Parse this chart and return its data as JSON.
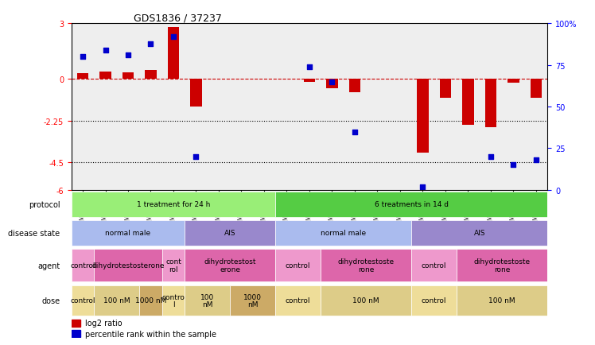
{
  "title": "GDS1836 / 37237",
  "samples": [
    "GSM88440",
    "GSM88442",
    "GSM88422",
    "GSM88438",
    "GSM88423",
    "GSM88441",
    "GSM88429",
    "GSM88435",
    "GSM88439",
    "GSM88424",
    "GSM88431",
    "GSM88436",
    "GSM88426",
    "GSM88432",
    "GSM88434",
    "GSM88427",
    "GSM88430",
    "GSM88437",
    "GSM88425",
    "GSM88428",
    "GSM88433"
  ],
  "log2_ratio": [
    0.3,
    0.4,
    0.35,
    0.5,
    2.8,
    -1.5,
    0.0,
    0.0,
    0.0,
    0.0,
    -0.15,
    -0.5,
    -0.7,
    0.0,
    0.0,
    -4.0,
    -1.0,
    -2.5,
    -2.6,
    -0.2,
    -1.0
  ],
  "percentile_rank": [
    80,
    84,
    81,
    88,
    92,
    20,
    null,
    null,
    null,
    null,
    74,
    65,
    35,
    null,
    null,
    2,
    null,
    null,
    20,
    15,
    18
  ],
  "ylim_left": [
    -6,
    3
  ],
  "ylim_right": [
    0,
    100
  ],
  "yticks_left": [
    3,
    0,
    -2.25,
    -4.5,
    -6
  ],
  "yticks_right": [
    100,
    75,
    50,
    25,
    0
  ],
  "hline_y": 0,
  "dotted_lines": [
    -2.25,
    -4.5
  ],
  "bar_color": "#cc0000",
  "scatter_color": "#0000cc",
  "hline_color": "#cc0000",
  "protocol_row": [
    {
      "label": "1 treatment for 24 h",
      "start": 0,
      "end": 8,
      "color": "#99ee77"
    },
    {
      "label": "6 treatments in 14 d",
      "start": 9,
      "end": 20,
      "color": "#55cc44"
    }
  ],
  "disease_state_row": [
    {
      "label": "normal male",
      "start": 0,
      "end": 4,
      "color": "#aabbee"
    },
    {
      "label": "AIS",
      "start": 5,
      "end": 8,
      "color": "#9988cc"
    },
    {
      "label": "normal male",
      "start": 9,
      "end": 14,
      "color": "#aabbee"
    },
    {
      "label": "AIS",
      "start": 15,
      "end": 20,
      "color": "#9988cc"
    }
  ],
  "agent_row": [
    {
      "label": "control",
      "start": 0,
      "end": 0,
      "color": "#ee99cc"
    },
    {
      "label": "dihydrotestosterone",
      "start": 1,
      "end": 3,
      "color": "#dd66aa"
    },
    {
      "label": "cont\nrol",
      "start": 4,
      "end": 4,
      "color": "#ee99cc"
    },
    {
      "label": "dihydrotestost\nerone",
      "start": 5,
      "end": 8,
      "color": "#dd66aa"
    },
    {
      "label": "control",
      "start": 9,
      "end": 10,
      "color": "#ee99cc"
    },
    {
      "label": "dihydrotestoste\nrone",
      "start": 11,
      "end": 14,
      "color": "#dd66aa"
    },
    {
      "label": "control",
      "start": 15,
      "end": 16,
      "color": "#ee99cc"
    },
    {
      "label": "dihydrotestoste\nrone",
      "start": 17,
      "end": 20,
      "color": "#dd66aa"
    }
  ],
  "dose_row": [
    {
      "label": "control",
      "start": 0,
      "end": 0,
      "color": "#eedd99"
    },
    {
      "label": "100 nM",
      "start": 1,
      "end": 2,
      "color": "#ddcc88"
    },
    {
      "label": "1000 nM",
      "start": 3,
      "end": 3,
      "color": "#ccaa66"
    },
    {
      "label": "contro\nl",
      "start": 4,
      "end": 4,
      "color": "#eedd99"
    },
    {
      "label": "100\nnM",
      "start": 5,
      "end": 6,
      "color": "#ddcc88"
    },
    {
      "label": "1000\nnM",
      "start": 7,
      "end": 8,
      "color": "#ccaa66"
    },
    {
      "label": "control",
      "start": 9,
      "end": 10,
      "color": "#eedd99"
    },
    {
      "label": "100 nM",
      "start": 11,
      "end": 14,
      "color": "#ddcc88"
    },
    {
      "label": "control",
      "start": 15,
      "end": 16,
      "color": "#eedd99"
    },
    {
      "label": "100 nM",
      "start": 17,
      "end": 20,
      "color": "#ddcc88"
    }
  ],
  "row_labels": [
    "protocol",
    "disease state",
    "agent",
    "dose"
  ],
  "background_color": "#ffffff",
  "axis_bg": "#eeeeee"
}
